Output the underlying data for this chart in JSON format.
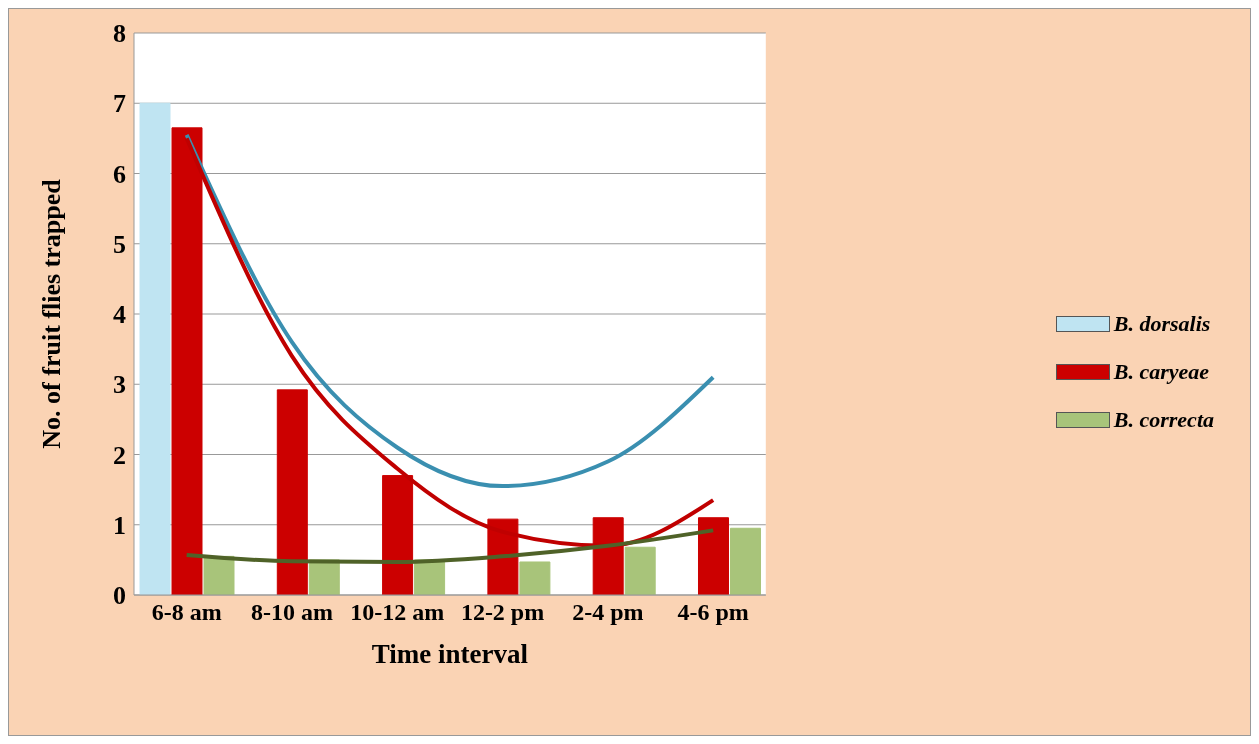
{
  "chart_data": {
    "type": "bar",
    "xlabel": "Time interval",
    "ylabel": "No. of fruit flies trapped",
    "categories": [
      "6-8 am",
      "8-10 am",
      "10-12 am",
      "12-2 pm",
      "2-4 pm",
      "4-6 pm"
    ],
    "series": [
      {
        "name": "B. dorsalis",
        "color": "#bfe4f2",
        "values": [
          7,
          null,
          null,
          null,
          null,
          null
        ]
      },
      {
        "name": "B. caryeae",
        "color": "#cc0000",
        "values": [
          6.65,
          2.92,
          1.7,
          1.08,
          1.1,
          1.1
        ]
      },
      {
        "name": "B. correcta",
        "color": "#a8c47a",
        "values": [
          0.55,
          0.5,
          0.5,
          0.47,
          0.68,
          0.95
        ]
      },
      {
        "type": "line",
        "color": "#3a8fb0",
        "x": [
          "6-8 am",
          "8-10 am",
          "10-12 am",
          "12-2 pm",
          "2-4 pm",
          "4-6 pm"
        ],
        "values": [
          6.55,
          3.6,
          2.1,
          1.55,
          1.9,
          3.1
        ]
      },
      {
        "type": "line",
        "color": "#c00000",
        "x": [
          "6-8 am",
          "8-10 am",
          "10-12 am",
          "12-2 pm",
          "2-4 pm",
          "4-6 pm"
        ],
        "values": [
          6.5,
          3.4,
          1.8,
          0.9,
          0.7,
          1.35
        ]
      },
      {
        "type": "line",
        "color": "#4f6228",
        "x": [
          "6-8 am",
          "8-10 am",
          "10-12 am",
          "12-2 pm",
          "2-4 pm",
          "4-6 pm"
        ],
        "values": [
          0.57,
          0.48,
          0.47,
          0.55,
          0.7,
          0.92
        ]
      }
    ],
    "ylim": [
      0,
      8
    ],
    "yticks": [
      0,
      1,
      2,
      3,
      4,
      5,
      6,
      7,
      8
    ],
    "grid": "y",
    "legend": "right",
    "marker": "none",
    "line_style": "solid"
  }
}
